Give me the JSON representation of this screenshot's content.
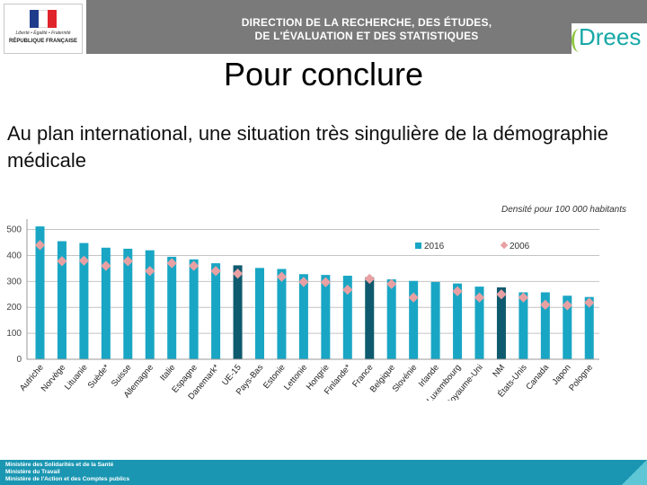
{
  "header": {
    "logo_motto": "Liberté • Égalité • Fraternité",
    "logo_republic": "RÉPUBLIQUE FRANÇAISE",
    "banner_line1": "DIRECTION DE LA RECHERCHE, DES ÉTUDES,",
    "banner_line2": "DE L'ÉVALUATION ET DES STATISTIQUES",
    "brand": "Drees"
  },
  "title": "Pour conclure",
  "subtitle": "Au plan international, une situation très singulière de la démographie médicale",
  "footer": {
    "line1": "Ministère des Solidarités et de la Santé",
    "line2": "Ministère du Travail",
    "line3": "Ministère de l'Action et des Comptes publics"
  },
  "chart_data": {
    "type": "bar",
    "title": "Densité pour 100 000 habitants",
    "xlabel": "",
    "ylabel": "",
    "ylim": [
      0,
      540
    ],
    "yticks": [
      0,
      100,
      200,
      300,
      400,
      500
    ],
    "ytick_labels": [
      "0",
      "100",
      "200",
      "300",
      "400",
      "500"
    ],
    "categories": [
      "Autriche",
      "Norvège",
      "Lituanie",
      "Suède*",
      "Suisse",
      "Allemagne",
      "Italie",
      "Espagne",
      "Danemark*",
      "UE-15",
      "Pays-Bas",
      "Estonie",
      "Lettonie",
      "Hongrie",
      "Finlande*",
      "France",
      "Belgique",
      "Slovénie",
      "Irlande",
      "Luxembourg",
      "Royaume-Uni",
      "NM",
      "États-Unis",
      "Canada",
      "Japon",
      "Pologne"
    ],
    "highlighted": [
      "UE-15",
      "France",
      "NM"
    ],
    "series": [
      {
        "name": "2016",
        "kind": "bar",
        "color": "#19a6c4",
        "highlight_color": "#0e5a6e",
        "values": [
          512,
          455,
          448,
          430,
          426,
          420,
          395,
          385,
          370,
          362,
          352,
          348,
          328,
          325,
          322,
          316,
          308,
          302,
          298,
          292,
          280,
          277,
          258,
          258,
          245,
          240
        ]
      },
      {
        "name": "2006",
        "kind": "marker",
        "color": "#e8a0a3",
        "values": [
          440,
          378,
          380,
          360,
          378,
          340,
          370,
          360,
          340,
          330,
          null,
          318,
          298,
          297,
          268,
          310,
          290,
          238,
          null,
          262,
          238,
          250,
          238,
          210,
          208,
          218
        ]
      }
    ],
    "legend_position": "top-center",
    "grid": true
  }
}
